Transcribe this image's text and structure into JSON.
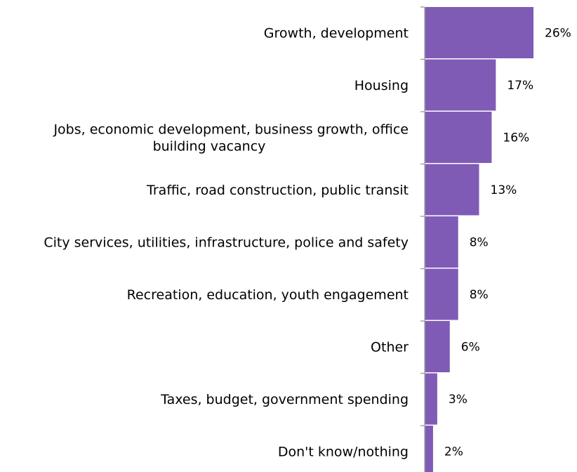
{
  "chart_data": {
    "type": "bar",
    "orientation": "horizontal",
    "title": "",
    "xlabel": "",
    "ylabel": "",
    "categories": [
      "Growth, development",
      "Housing",
      "Jobs, economic development, business growth, office building vacancy",
      "Traffic, road construction, public transit",
      "City services, utilities, infrastructure, police and safety",
      "Recreation, education, youth engagement",
      "Other",
      "Taxes, budget, government spending",
      "Don't know/nothing"
    ],
    "category_lines": [
      [
        "Growth, development"
      ],
      [
        "Housing"
      ],
      [
        "Jobs, economic development, business growth, office",
        "building vacancy"
      ],
      [
        "Traffic, road construction, public transit"
      ],
      [
        "City services, utilities, infrastructure, police and safety"
      ],
      [
        "Recreation, education, youth engagement"
      ],
      [
        "Other"
      ],
      [
        "Taxes, budget, government spending"
      ],
      [
        "Don't know/nothing"
      ]
    ],
    "values": [
      26,
      17,
      16,
      13,
      8,
      8,
      6,
      3,
      2
    ],
    "value_labels": [
      "26%",
      "17%",
      "16%",
      "13%",
      "8%",
      "8%",
      "6%",
      "3%",
      "2%"
    ],
    "unit": "%",
    "xlim": [
      0,
      26
    ],
    "grid": false,
    "legend": "none",
    "bar_color": "#7f5bb6"
  }
}
